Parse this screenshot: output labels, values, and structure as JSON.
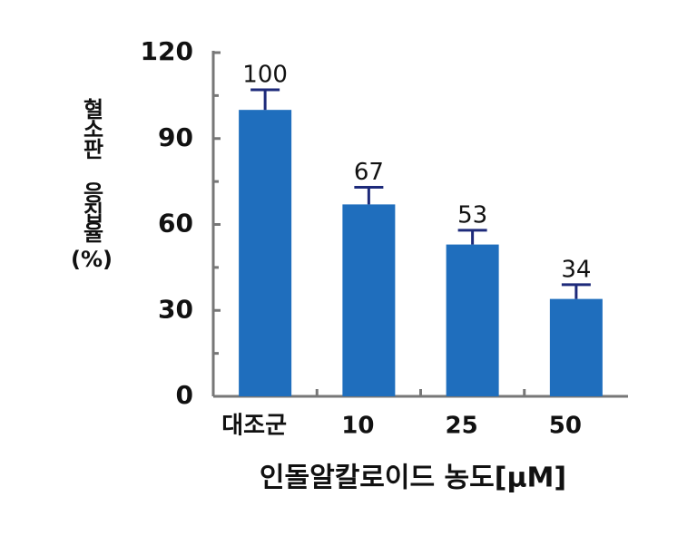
{
  "chart_data": {
    "type": "bar",
    "categories": [
      "대조군",
      "10",
      "25",
      "50"
    ],
    "values": [
      100,
      67,
      53,
      34
    ],
    "errors": [
      7,
      6,
      5,
      5
    ],
    "color": "#1f6ebd",
    "error_color": "#1d2a7a",
    "ylim": [
      0,
      120
    ],
    "yticks": [
      0,
      30,
      60,
      90,
      120
    ],
    "minor_yticks": [
      15,
      45,
      75,
      105
    ],
    "y_label": [
      "혈소판 응집율",
      "(%)"
    ],
    "x_label": "인돌알칼로이드 농도[μM]",
    "grid": false
  }
}
